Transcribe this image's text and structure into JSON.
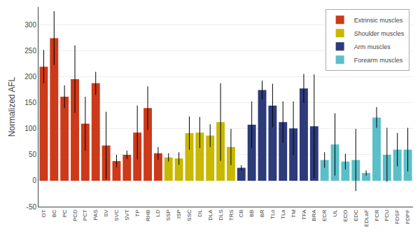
{
  "chart_data": {
    "type": "bar",
    "categories": [
      "OT",
      "BC",
      "PC",
      "PCD",
      "PCT",
      "PAS",
      "SV",
      "SVC",
      "SVT",
      "TP",
      "RHB",
      "LD",
      "SSP",
      "ISP",
      "SSC",
      "DL",
      "DLA",
      "DLS",
      "TRS",
      "CB",
      "BB",
      "BR",
      "TLo",
      "TLa",
      "TM",
      "TFA",
      "BRA",
      "ECR",
      "UL",
      "ECO",
      "EDC",
      "EDLaF",
      "FCR",
      "FCU",
      "FDSF",
      "FDPF"
    ],
    "series": [
      {
        "name": "Extrinsic muscles",
        "color": "#cc3a1a",
        "values": [
          220,
          275,
          162,
          196,
          110,
          188,
          68,
          38,
          50,
          93,
          140,
          53,
          null,
          null,
          null,
          null,
          null,
          null,
          null,
          null,
          null,
          null,
          null,
          null,
          null,
          null,
          null,
          null,
          null,
          null,
          null,
          null,
          null,
          null,
          null,
          null
        ],
        "errors": [
          32,
          52,
          22,
          65,
          52,
          22,
          65,
          12,
          8,
          52,
          42,
          12,
          null,
          null,
          null,
          null,
          null,
          null,
          null,
          null,
          null,
          null,
          null,
          null,
          null,
          null,
          null,
          null,
          null,
          null,
          null,
          null,
          null,
          null,
          null,
          null
        ]
      },
      {
        "name": "Shoulder muscles",
        "color": "#c8b800",
        "values": [
          null,
          null,
          null,
          null,
          null,
          null,
          null,
          null,
          null,
          null,
          null,
          null,
          45,
          43,
          92,
          93,
          87,
          113,
          65,
          null,
          null,
          null,
          null,
          null,
          null,
          null,
          null,
          null,
          null,
          null,
          null,
          null,
          null,
          null,
          null,
          null
        ],
        "errors": [
          null,
          null,
          null,
          null,
          null,
          null,
          null,
          null,
          null,
          null,
          null,
          null,
          8,
          12,
          32,
          30,
          22,
          75,
          35,
          null,
          null,
          null,
          null,
          null,
          null,
          null,
          null,
          null,
          null,
          null,
          null,
          null,
          null,
          null,
          null,
          null
        ]
      },
      {
        "name": "Arm muscles",
        "color": "#2e3b7a",
        "values": [
          null,
          null,
          null,
          null,
          null,
          null,
          null,
          null,
          null,
          null,
          null,
          null,
          null,
          null,
          null,
          null,
          null,
          null,
          null,
          25,
          108,
          175,
          145,
          113,
          101,
          178,
          105,
          null,
          null,
          null,
          null,
          null,
          null,
          null,
          null,
          null
        ],
        "errors": [
          null,
          null,
          null,
          null,
          null,
          null,
          null,
          null,
          null,
          null,
          null,
          null,
          null,
          null,
          null,
          null,
          null,
          null,
          null,
          5,
          45,
          18,
          42,
          40,
          52,
          28,
          100,
          null,
          null,
          null,
          null,
          null,
          null,
          null,
          null,
          null
        ]
      },
      {
        "name": "Forearm muscles",
        "color": "#5bbfc8",
        "values": [
          null,
          null,
          null,
          null,
          null,
          null,
          null,
          null,
          null,
          null,
          null,
          null,
          null,
          null,
          null,
          null,
          null,
          null,
          null,
          null,
          null,
          null,
          null,
          null,
          null,
          null,
          null,
          40,
          70,
          37,
          40,
          15,
          122,
          50,
          60,
          60
        ],
        "errors": [
          null,
          null,
          null,
          null,
          null,
          null,
          null,
          null,
          null,
          null,
          null,
          null,
          null,
          null,
          null,
          null,
          null,
          null,
          null,
          null,
          null,
          null,
          null,
          null,
          null,
          null,
          null,
          15,
          60,
          15,
          60,
          5,
          20,
          52,
          32,
          42
        ]
      }
    ],
    "ylabel": "Normalized AFL",
    "ylim": [
      -50,
      335
    ],
    "yticks": [
      -50,
      0,
      50,
      100,
      150,
      200,
      250,
      300
    ],
    "grid": true,
    "legend": "upper right"
  }
}
